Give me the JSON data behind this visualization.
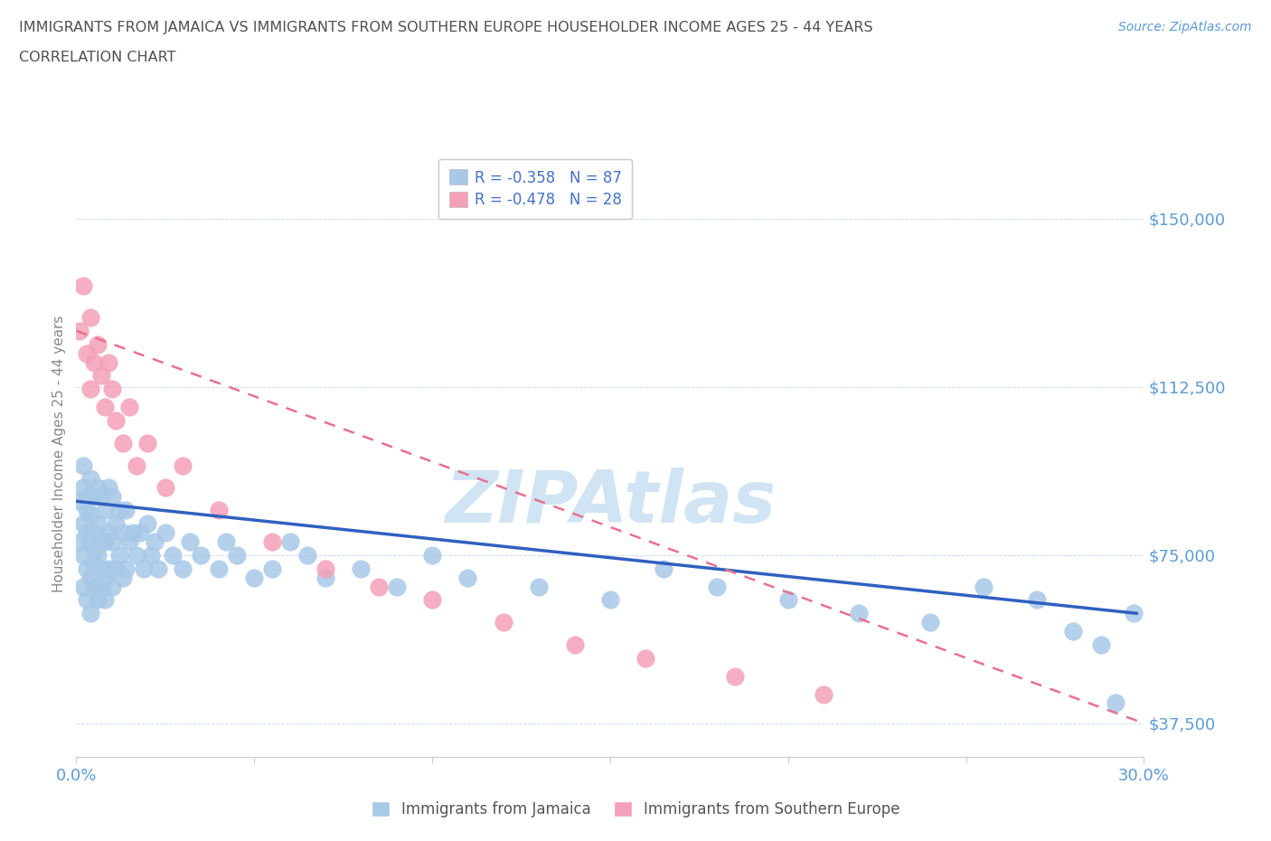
{
  "title_line1": "IMMIGRANTS FROM JAMAICA VS IMMIGRANTS FROM SOUTHERN EUROPE HOUSEHOLDER INCOME AGES 25 - 44 YEARS",
  "title_line2": "CORRELATION CHART",
  "source_text": "Source: ZipAtlas.com",
  "ylabel": "Householder Income Ages 25 - 44 years",
  "xlim": [
    0.0,
    0.3
  ],
  "ylim": [
    30000,
    165000
  ],
  "yticks": [
    37500,
    75000,
    112500,
    150000
  ],
  "ytick_labels": [
    "$37,500",
    "$75,000",
    "$112,500",
    "$150,000"
  ],
  "jamaica_R": -0.358,
  "jamaica_N": 87,
  "southern_europe_R": -0.478,
  "southern_europe_N": 28,
  "jamaica_color": "#a8c8e8",
  "southern_europe_color": "#f4a0b8",
  "jamaica_line_color": "#3060c0",
  "southern_europe_line_color": "#e87090",
  "title_color": "#505050",
  "axis_color": "#5b9bd5",
  "grid_color": "#c8ddf0",
  "watermark_color": "#d0e4f4",
  "legend_R_color": "#4472c4",
  "jamaica_scatter_x": [
    0.001,
    0.001,
    0.002,
    0.002,
    0.002,
    0.002,
    0.002,
    0.003,
    0.003,
    0.003,
    0.003,
    0.003,
    0.004,
    0.004,
    0.004,
    0.004,
    0.004,
    0.005,
    0.005,
    0.005,
    0.005,
    0.005,
    0.006,
    0.006,
    0.006,
    0.006,
    0.007,
    0.007,
    0.007,
    0.007,
    0.008,
    0.008,
    0.008,
    0.008,
    0.009,
    0.009,
    0.009,
    0.01,
    0.01,
    0.01,
    0.011,
    0.011,
    0.012,
    0.012,
    0.013,
    0.013,
    0.014,
    0.014,
    0.015,
    0.016,
    0.017,
    0.018,
    0.019,
    0.02,
    0.021,
    0.022,
    0.023,
    0.025,
    0.027,
    0.03,
    0.032,
    0.035,
    0.04,
    0.042,
    0.045,
    0.05,
    0.055,
    0.06,
    0.065,
    0.07,
    0.08,
    0.09,
    0.1,
    0.11,
    0.13,
    0.15,
    0.165,
    0.18,
    0.2,
    0.22,
    0.24,
    0.255,
    0.27,
    0.28,
    0.288,
    0.292,
    0.297
  ],
  "jamaica_scatter_y": [
    87000,
    78000,
    90000,
    82000,
    75000,
    68000,
    95000,
    88000,
    80000,
    72000,
    65000,
    85000,
    92000,
    78000,
    70000,
    84000,
    62000,
    88000,
    80000,
    73000,
    68000,
    76000,
    90000,
    82000,
    75000,
    65000,
    88000,
    78000,
    72000,
    68000,
    85000,
    78000,
    70000,
    65000,
    90000,
    80000,
    72000,
    88000,
    78000,
    68000,
    82000,
    72000,
    85000,
    75000,
    80000,
    70000,
    85000,
    72000,
    78000,
    80000,
    75000,
    80000,
    72000,
    82000,
    75000,
    78000,
    72000,
    80000,
    75000,
    72000,
    78000,
    75000,
    72000,
    78000,
    75000,
    70000,
    72000,
    78000,
    75000,
    70000,
    72000,
    68000,
    75000,
    70000,
    68000,
    65000,
    72000,
    68000,
    65000,
    62000,
    60000,
    68000,
    65000,
    58000,
    55000,
    42000,
    62000
  ],
  "southern_europe_scatter_x": [
    0.001,
    0.002,
    0.003,
    0.004,
    0.004,
    0.005,
    0.006,
    0.007,
    0.008,
    0.009,
    0.01,
    0.011,
    0.013,
    0.015,
    0.017,
    0.02,
    0.025,
    0.03,
    0.04,
    0.055,
    0.07,
    0.085,
    0.1,
    0.12,
    0.14,
    0.16,
    0.185,
    0.21
  ],
  "southern_europe_scatter_y": [
    125000,
    135000,
    120000,
    128000,
    112000,
    118000,
    122000,
    115000,
    108000,
    118000,
    112000,
    105000,
    100000,
    108000,
    95000,
    100000,
    90000,
    95000,
    85000,
    78000,
    72000,
    68000,
    65000,
    60000,
    55000,
    52000,
    48000,
    44000
  ],
  "jamaica_line_x": [
    0.0,
    0.298
  ],
  "jamaica_line_y": [
    87000,
    62000
  ],
  "southern_europe_line_x": [
    0.0,
    0.3
  ],
  "southern_europe_line_y": [
    125000,
    37500
  ]
}
